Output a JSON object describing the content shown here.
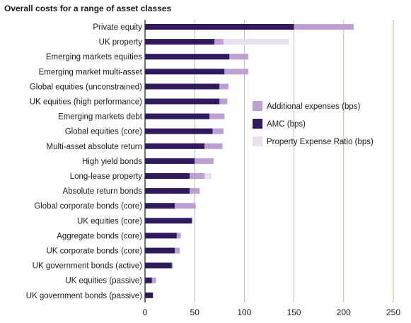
{
  "chart_data": {
    "type": "bar",
    "orientation": "horizontal",
    "stacked": true,
    "title": "Overall costs for a range of asset classes",
    "xlabel": "",
    "ylabel": "",
    "xlim": [
      0,
      250
    ],
    "xticks": [
      0,
      50,
      100,
      150,
      200,
      250
    ],
    "grid": "vertical",
    "legend_position": "right",
    "categories": [
      "Private equity",
      "UK property",
      "Emerging markets equities",
      "Emerging market multi-asset",
      "Global equities (unconstrained)",
      "UK equities (high performance)",
      "Emerging markets debt",
      "Global equities (core)",
      "Multi-asset absolute return",
      "High yield bonds",
      "Long-lease property",
      "Absolute return bonds",
      "Global corporate bonds (core)",
      "UK equities (core)",
      "Aggregate bonds (core)",
      "UK corporate bonds (core)",
      "UK government bonds (active)",
      "UK equities (passive)",
      "UK government bonds (passive)"
    ],
    "series": [
      {
        "name": "AMC (bps)",
        "color": "#2e1a5c",
        "values": [
          150,
          70,
          85,
          80,
          75,
          75,
          65,
          68,
          60,
          50,
          45,
          45,
          30,
          47,
          32,
          30,
          27,
          7,
          8
        ]
      },
      {
        "name": "Additional expenses (bps)",
        "color": "#bd9fd0",
        "values": [
          60,
          9,
          19,
          24,
          9,
          8,
          15,
          11,
          18,
          19,
          15,
          10,
          21,
          1,
          4,
          5,
          1,
          4,
          0
        ]
      },
      {
        "name": "Property Expense Ratio (bps)",
        "color": "#e8e0ef",
        "values": [
          0,
          66,
          0,
          0,
          0,
          0,
          0,
          0,
          0,
          0,
          7,
          0,
          0,
          0,
          0,
          0,
          0,
          0,
          0
        ]
      }
    ],
    "legend_order": [
      "Additional expenses (bps)",
      "AMC (bps)",
      "Property Expense Ratio (bps)"
    ],
    "colors": {
      "grid": "#c8b98a",
      "axis": "#1a1a1a"
    }
  }
}
